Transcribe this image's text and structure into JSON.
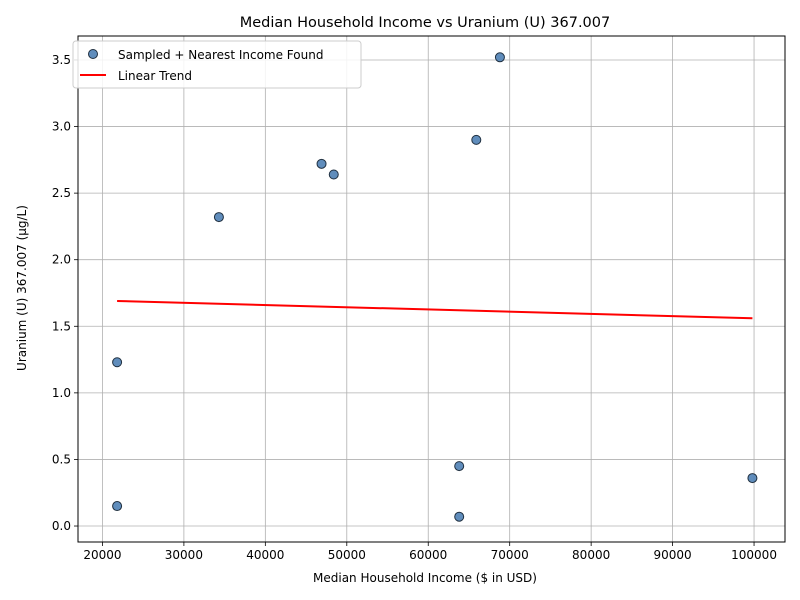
{
  "chart_data": {
    "type": "scatter",
    "title": "Median Household Income vs Uranium (U) 367.007",
    "xlabel": "Median Household Income ($ in USD)",
    "ylabel": "Uranium (U) 367.007 (µg/L)",
    "xlim": [
      17000,
      103800
    ],
    "ylim": [
      -0.12,
      3.68
    ],
    "xticks": [
      20000,
      30000,
      40000,
      50000,
      60000,
      70000,
      80000,
      90000,
      100000
    ],
    "yticks": [
      0.0,
      0.5,
      1.0,
      1.5,
      2.0,
      2.5,
      3.0,
      3.5
    ],
    "xtick_labels": [
      "20000",
      "30000",
      "40000",
      "50000",
      "60000",
      "70000",
      "80000",
      "90000",
      "100000"
    ],
    "ytick_labels": [
      "0.0",
      "0.5",
      "1.0",
      "1.5",
      "2.0",
      "2.5",
      "3.0",
      "3.5"
    ],
    "grid": true,
    "legend_position": "upper-left",
    "series": [
      {
        "name": "Sampled + Nearest Income Found",
        "kind": "scatter",
        "color": "#4f81b5",
        "edge_color": "#1f2f3f",
        "points": [
          {
            "x": 21800,
            "y": 1.23
          },
          {
            "x": 21800,
            "y": 0.15
          },
          {
            "x": 34300,
            "y": 2.32
          },
          {
            "x": 46900,
            "y": 2.72
          },
          {
            "x": 48400,
            "y": 2.64
          },
          {
            "x": 63800,
            "y": 0.45
          },
          {
            "x": 63800,
            "y": 0.07
          },
          {
            "x": 65900,
            "y": 2.9
          },
          {
            "x": 68800,
            "y": 3.52
          },
          {
            "x": 99800,
            "y": 0.36
          }
        ]
      },
      {
        "name": "Linear Trend",
        "kind": "line",
        "color": "#ff0000",
        "points": [
          {
            "x": 21800,
            "y": 1.69
          },
          {
            "x": 99800,
            "y": 1.56
          }
        ]
      }
    ]
  }
}
